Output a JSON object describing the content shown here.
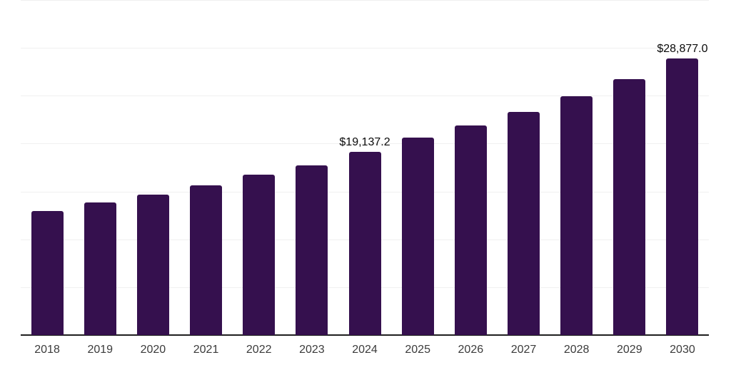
{
  "chart_data": {
    "type": "bar",
    "title": "",
    "xlabel": "",
    "ylabel": "",
    "categories": [
      "2018",
      "2019",
      "2020",
      "2021",
      "2022",
      "2023",
      "2024",
      "2025",
      "2026",
      "2027",
      "2028",
      "2029",
      "2030"
    ],
    "values": [
      12950,
      13850,
      14670,
      15640,
      16750,
      17720,
      19137.2,
      20610,
      21920,
      23310,
      24950,
      26730,
      28877
    ],
    "value_labels": [
      "",
      "",
      "",
      "",
      "",
      "",
      "$19,137.2",
      "",
      "",
      "",
      "",
      "",
      "$28,877.0"
    ],
    "ylim": [
      0,
      35000
    ],
    "grid_step": 5000,
    "grid": "horizontal-only",
    "legend": "none",
    "colors": {
      "bar": "#35104E",
      "axis": "#1f1f1f",
      "gridline": "#f0f0f0",
      "tick_label": "#3b3b3b",
      "value_label": "#0a0a0a"
    }
  }
}
